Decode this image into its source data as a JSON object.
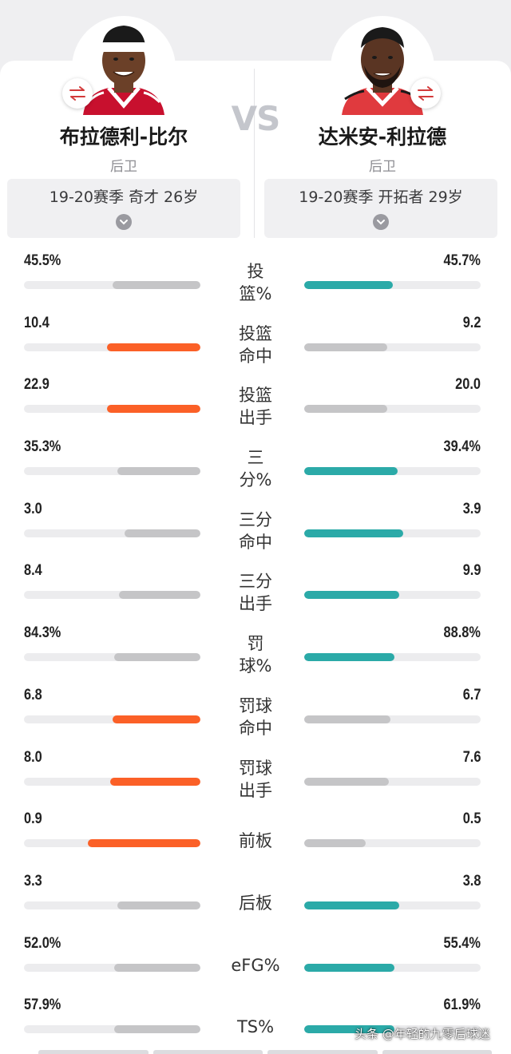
{
  "players": {
    "left": {
      "name": "布拉德利-比尔",
      "position": "后卫",
      "info": "19-20赛季 奇才 26岁",
      "colors": {
        "skin": "#6b4028",
        "jersey": "#c8102e",
        "jersey_trim": "#ffffff",
        "headband": "#ffffff"
      }
    },
    "right": {
      "name": "达米安-利拉德",
      "position": "后卫",
      "info": "19-20赛季 开拓者 29岁",
      "colors": {
        "skin": "#5a3523",
        "jersey": "#e03a3e",
        "jersey_trim": "#ffffff",
        "headband": ""
      }
    }
  },
  "vs_text": "VS",
  "icons": {
    "swap": "swap-arrows-icon",
    "chevron": "chevron-down-icon"
  },
  "colors": {
    "left_highlight": "#fb6027",
    "right_highlight": "#2baaa8",
    "muted_bar": "#c5c5c7",
    "track": "#ececee"
  },
  "stats": [
    {
      "label": "投\n篮%",
      "left": "45.5%",
      "right": "45.7%",
      "left_level": 0.5,
      "right_level": 0.5,
      "winner": "right"
    },
    {
      "label": "投篮\n命中",
      "left": "10.4",
      "right": "9.2",
      "left_level": 0.53,
      "right_level": 0.47,
      "winner": "left"
    },
    {
      "label": "投篮\n出手",
      "left": "22.9",
      "right": "20.0",
      "left_level": 0.53,
      "right_level": 0.47,
      "winner": "left"
    },
    {
      "label": "三\n分%",
      "left": "35.3%",
      "right": "39.4%",
      "left_level": 0.47,
      "right_level": 0.53,
      "winner": "right"
    },
    {
      "label": "三分\n命中",
      "left": "3.0",
      "right": "3.9",
      "left_level": 0.43,
      "right_level": 0.56,
      "winner": "right"
    },
    {
      "label": "三分\n出手",
      "left": "8.4",
      "right": "9.9",
      "left_level": 0.46,
      "right_level": 0.54,
      "winner": "right"
    },
    {
      "label": "罚\n球%",
      "left": "84.3%",
      "right": "88.8%",
      "left_level": 0.49,
      "right_level": 0.51,
      "winner": "right"
    },
    {
      "label": "罚球\n命中",
      "left": "6.8",
      "right": "6.7",
      "left_level": 0.5,
      "right_level": 0.49,
      "winner": "left"
    },
    {
      "label": "罚球\n出手",
      "left": "8.0",
      "right": "7.6",
      "left_level": 0.51,
      "right_level": 0.48,
      "winner": "left"
    },
    {
      "label": "前板",
      "left": "0.9",
      "right": "0.5",
      "left_level": 0.64,
      "right_level": 0.35,
      "winner": "left"
    },
    {
      "label": "后板",
      "left": "3.3",
      "right": "3.8",
      "left_level": 0.47,
      "right_level": 0.54,
      "winner": "right"
    },
    {
      "label": "eFG%",
      "left": "52.0%",
      "right": "55.4%",
      "left_level": 0.49,
      "right_level": 0.51,
      "winner": "right"
    },
    {
      "label": "TS%",
      "left": "57.9%",
      "right": "61.9%",
      "left_level": 0.49,
      "right_level": 0.51,
      "winner": "right"
    }
  ],
  "watermark": "头条 @年轻的九零后球迷"
}
